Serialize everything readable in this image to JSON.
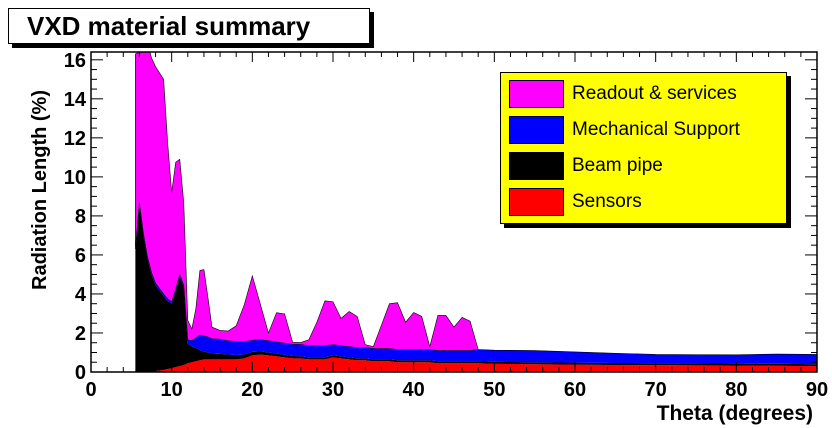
{
  "chart_data": {
    "type": "area",
    "stacked": true,
    "title": "VXD material summary",
    "xlabel": "Theta (degrees)",
    "ylabel": "Radiation Length (%)",
    "xlim": [
      0,
      90
    ],
    "ylim": [
      0,
      16.4
    ],
    "x_ticks": [
      0,
      10,
      20,
      30,
      40,
      50,
      60,
      70,
      80,
      90
    ],
    "y_ticks": [
      0,
      2,
      4,
      6,
      8,
      10,
      12,
      14,
      16
    ],
    "grid": false,
    "legend_position": "top-right",
    "x": [
      5.5,
      6,
      6.5,
      7,
      7.5,
      8,
      9,
      9.5,
      10,
      10.5,
      11,
      11.5,
      12,
      12.5,
      13,
      13.5,
      14,
      14.5,
      15,
      16,
      17,
      18,
      19,
      20,
      21,
      22,
      23,
      24,
      25,
      26,
      27,
      28,
      29,
      30,
      31,
      32,
      33,
      34,
      35,
      36,
      37,
      38,
      39,
      40,
      41,
      42,
      43,
      44,
      45,
      46,
      47,
      48,
      50,
      55,
      60,
      65,
      70,
      75,
      80,
      85,
      90
    ],
    "series": [
      {
        "name": "Sensors",
        "color": "#ff0000",
        "values": [
          0,
          0,
          0,
          0,
          0,
          0.05,
          0.1,
          0.15,
          0.2,
          0.25,
          0.3,
          0.35,
          0.45,
          0.5,
          0.55,
          0.6,
          0.65,
          0.65,
          0.65,
          0.65,
          0.65,
          0.65,
          0.7,
          0.85,
          0.9,
          0.85,
          0.8,
          0.75,
          0.7,
          0.7,
          0.65,
          0.65,
          0.65,
          0.75,
          0.7,
          0.65,
          0.6,
          0.6,
          0.55,
          0.55,
          0.55,
          0.5,
          0.5,
          0.5,
          0.5,
          0.5,
          0.45,
          0.45,
          0.45,
          0.45,
          0.45,
          0.45,
          0.42,
          0.4,
          0.38,
          0.36,
          0.35,
          0.34,
          0.33,
          0.32,
          0.3
        ]
      },
      {
        "name": "Beam pipe",
        "color": "#000000",
        "values": [
          6.2,
          8.6,
          7.0,
          5.8,
          5.0,
          4.4,
          3.8,
          3.5,
          3.3,
          3.9,
          4.6,
          4.0,
          1.0,
          0.8,
          0.7,
          0.5,
          0.4,
          0.35,
          0.3,
          0.28,
          0.25,
          0.22,
          0.2,
          0.18,
          0.16,
          0.15,
          0.14,
          0.13,
          0.12,
          0.11,
          0.1,
          0.1,
          0.1,
          0.1,
          0.1,
          0.1,
          0.1,
          0.1,
          0.1,
          0.1,
          0.1,
          0.1,
          0.1,
          0.1,
          0.1,
          0.1,
          0.1,
          0.1,
          0.1,
          0.1,
          0.1,
          0.1,
          0.1,
          0.1,
          0.1,
          0.1,
          0.1,
          0.1,
          0.1,
          0.1,
          0.1
        ]
      },
      {
        "name": "Mechanical Support",
        "color": "#0000ff",
        "values": [
          0.1,
          0.1,
          0.1,
          0.1,
          0.1,
          0.1,
          0.1,
          0.1,
          0.1,
          0.1,
          0.1,
          0.1,
          0.2,
          0.3,
          0.5,
          0.8,
          0.8,
          0.8,
          0.75,
          0.75,
          0.7,
          0.7,
          0.65,
          0.6,
          0.6,
          0.6,
          0.6,
          0.6,
          0.6,
          0.6,
          0.6,
          0.6,
          0.6,
          0.55,
          0.55,
          0.55,
          0.55,
          0.55,
          0.55,
          0.55,
          0.55,
          0.55,
          0.55,
          0.55,
          0.55,
          0.55,
          0.55,
          0.55,
          0.55,
          0.55,
          0.55,
          0.6,
          0.6,
          0.6,
          0.55,
          0.5,
          0.45,
          0.45,
          0.45,
          0.5,
          0.5
        ]
      },
      {
        "name": "Readout & services",
        "color": "#ff00ff",
        "values": [
          10.0,
          7.7,
          10.0,
          11.0,
          11.0,
          11.1,
          11.0,
          8.0,
          5.6,
          6.5,
          5.9,
          4.2,
          1.0,
          0.6,
          1.5,
          3.3,
          3.4,
          2.0,
          0.6,
          0.45,
          0.5,
          0.8,
          1.9,
          3.3,
          1.8,
          0.4,
          1.5,
          1.5,
          0.1,
          0.1,
          0.3,
          1.2,
          2.3,
          2.2,
          1.4,
          1.8,
          1.6,
          0.15,
          0.1,
          1.2,
          2.3,
          2.4,
          1.4,
          1.9,
          1.7,
          0.15,
          1.8,
          1.8,
          1.2,
          1.7,
          1.5,
          0,
          0,
          0,
          0,
          0,
          0,
          0,
          0,
          0,
          0
        ]
      }
    ]
  }
}
